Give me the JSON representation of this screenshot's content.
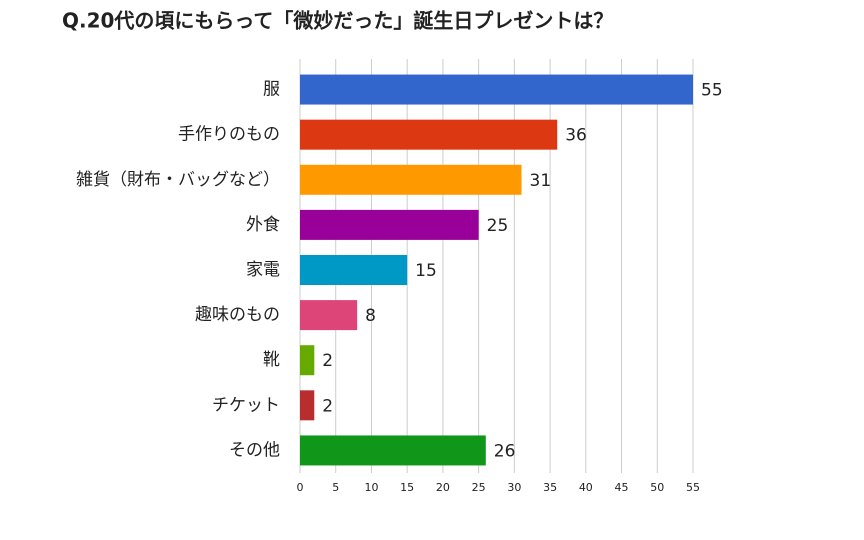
{
  "chart_data": {
    "type": "bar",
    "orientation": "horizontal",
    "title": "Q.20代の頃にもらって「微妙だった」誕生日プレゼントは？",
    "categories": [
      "服",
      "手作りのもの",
      "雑貨（財布・バッグなど）",
      "外食",
      "家電",
      "趣味のもの",
      "靴",
      "チケット",
      "その他"
    ],
    "values": [
      55,
      36,
      31,
      25,
      15,
      8,
      2,
      2,
      26
    ],
    "colors": [
      "#3366cc",
      "#dc3912",
      "#ff9900",
      "#990099",
      "#0099c6",
      "#dd4477",
      "#66aa00",
      "#b82e2e",
      "#109618"
    ],
    "xlim": [
      0,
      55
    ],
    "xticks": [
      0,
      5,
      10,
      15,
      20,
      25,
      30,
      35,
      40,
      45,
      50,
      55
    ],
    "grid": true
  }
}
